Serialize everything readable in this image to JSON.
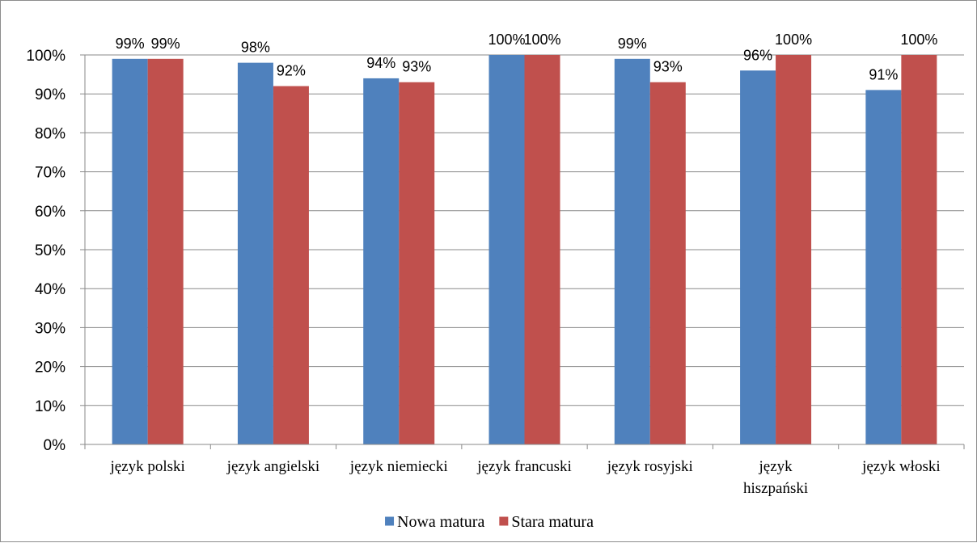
{
  "chart_data": {
    "type": "bar",
    "categories": [
      [
        "język polski"
      ],
      [
        "język angielski"
      ],
      [
        "język niemiecki"
      ],
      [
        "język francuski"
      ],
      [
        "język rosyjski"
      ],
      [
        "język",
        "hiszpański"
      ],
      [
        "język włoski"
      ]
    ],
    "series": [
      {
        "name": "Nowa matura",
        "color": "#4f81bd",
        "values": [
          99,
          98,
          94,
          100,
          99,
          96,
          91
        ]
      },
      {
        "name": "Stara matura",
        "color": "#c0504d",
        "values": [
          99,
          92,
          93,
          100,
          93,
          100,
          100
        ]
      }
    ],
    "value_suffix": "%",
    "ylim": [
      0,
      100
    ],
    "yticks": [
      0,
      10,
      20,
      30,
      40,
      50,
      60,
      70,
      80,
      90,
      100
    ],
    "grid": true,
    "legend_position": "bottom"
  }
}
